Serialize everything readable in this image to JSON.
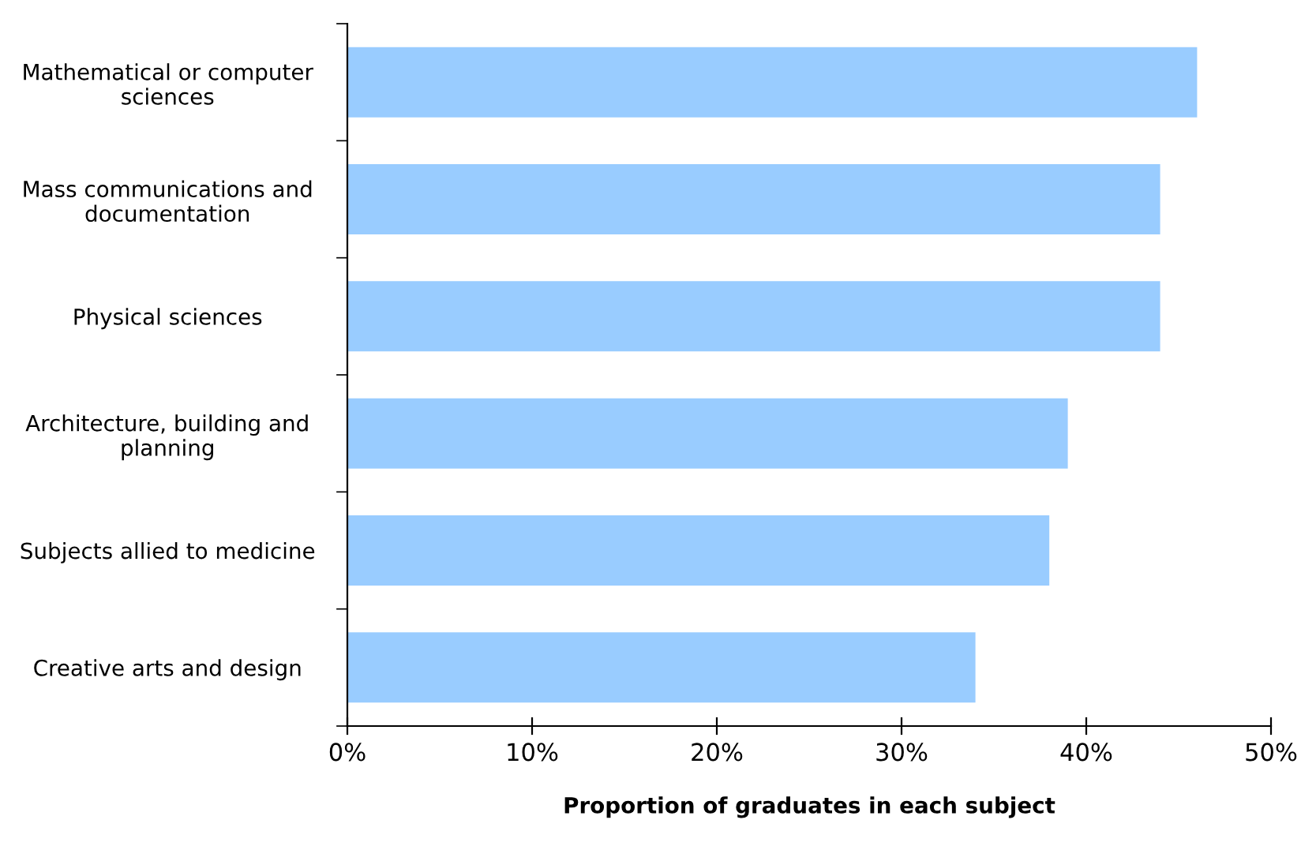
{
  "chart_data": {
    "type": "bar",
    "orientation": "horizontal",
    "xlabel": "Proportion of graduates in each subject",
    "categories": [
      "Mathematical or computer\nsciences",
      "Mass communications and\ndocumentation",
      "Physical sciences",
      "Architecture, building and\nplanning",
      "Subjects allied to medicine",
      "Creative arts and design"
    ],
    "values": [
      46,
      44,
      44,
      39,
      38,
      34
    ],
    "color": "#99ccff",
    "xlim": [
      0,
      50
    ],
    "xticks": [
      {
        "value": 0,
        "label": "0%"
      },
      {
        "value": 10,
        "label": "10%"
      },
      {
        "value": 20,
        "label": "20%"
      },
      {
        "value": 30,
        "label": "30%"
      },
      {
        "value": 40,
        "label": "40%"
      },
      {
        "value": 50,
        "label": "50%"
      }
    ],
    "grid": false,
    "legend": false
  }
}
